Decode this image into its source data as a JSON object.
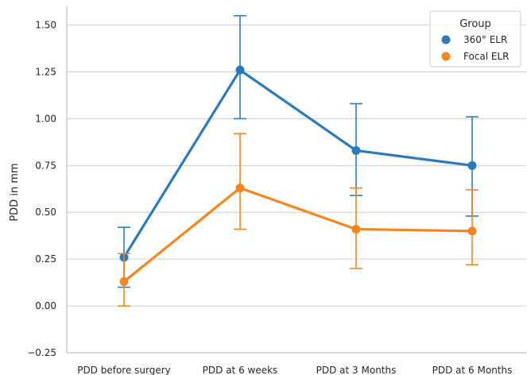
{
  "chart_data": {
    "type": "line",
    "title": "",
    "xlabel": "",
    "ylabel": "PDD in mm",
    "categories": [
      "PDD before surgery",
      "PDD at 6 weeks",
      "PDD at 3 Months",
      "PDD at 6 Months"
    ],
    "ylim": [
      -0.25,
      1.6
    ],
    "yticks": [
      "−0.25",
      "0.00",
      "0.25",
      "0.50",
      "0.75",
      "1.00",
      "1.25",
      "1.50"
    ],
    "ytick_values": [
      -0.25,
      0,
      0.25,
      0.5,
      0.75,
      1.0,
      1.25,
      1.5
    ],
    "grid": true,
    "legend": {
      "title": "Group",
      "placement": "top-right"
    },
    "series": [
      {
        "name": "360° ELR",
        "color": "#2b7bba",
        "values": [
          0.26,
          1.26,
          0.83,
          0.75
        ],
        "err_low": [
          0.1,
          1.0,
          0.59,
          0.48
        ],
        "err_high": [
          0.42,
          1.55,
          1.08,
          1.01
        ]
      },
      {
        "name": "Focal ELR",
        "color": "#f5861f",
        "values": [
          0.13,
          0.63,
          0.41,
          0.4
        ],
        "err_low": [
          0.0,
          0.41,
          0.2,
          0.22
        ],
        "err_high": [
          0.28,
          0.92,
          0.63,
          0.62
        ]
      }
    ]
  }
}
